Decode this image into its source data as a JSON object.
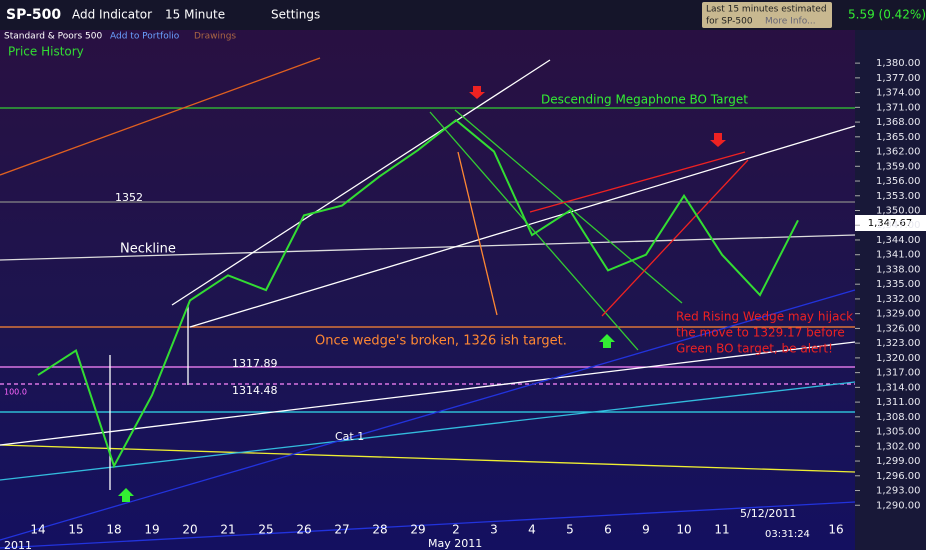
{
  "toolbar": {
    "symbol": "SP-500",
    "add_indicator": "Add Indicator",
    "interval": "15 Minute",
    "settings": "Settings",
    "delay_note_1": "Last 15 minutes estimated",
    "delay_note_2": "for SP-500",
    "more_info": "More Info...",
    "change": "5.59 (0.42%)"
  },
  "subbar": {
    "name": "Standard & Poors 500",
    "add_portfolio": "Add to Portfolio",
    "drawings": "Drawings",
    "price_history": "Price History"
  },
  "chart_data": {
    "type": "line",
    "color": "#33dd33",
    "categories": [
      "14",
      "15",
      "18",
      "19",
      "20",
      "21",
      "25",
      "26",
      "27",
      "28",
      "29",
      "2",
      "3",
      "4",
      "5",
      "6",
      "9",
      "10",
      "11",
      null,
      null,
      "16"
    ],
    "values": [
      1316.5,
      1321.5,
      1298,
      1312.4,
      1331.7,
      1336.8,
      1333.8,
      1349,
      1351,
      1357,
      1362.3,
      1368.4,
      1362,
      1345,
      1350,
      1337.8,
      1341,
      1353,
      1341,
      1332.8,
      1348,
      null
    ],
    "ylim": [
      1287,
      1384.3
    ],
    "yticks": [
      {
        "value": 1290,
        "label": "1,290.00"
      },
      {
        "value": 1293,
        "label": "1,293.00"
      },
      {
        "value": 1296,
        "label": "1,296.00"
      },
      {
        "value": 1299,
        "label": "1,299.00"
      },
      {
        "value": 1302,
        "label": "1,302.00"
      },
      {
        "value": 1305,
        "label": "1,305.00"
      },
      {
        "value": 1308,
        "label": "1,308.00"
      },
      {
        "value": 1311,
        "label": "1,311.00"
      },
      {
        "value": 1314,
        "label": "1,314.00"
      },
      {
        "value": 1317,
        "label": "1,317.00"
      },
      {
        "value": 1320,
        "label": "1,320.00"
      },
      {
        "value": 1323,
        "label": "1,323.00"
      },
      {
        "value": 1326,
        "label": "1,326.00"
      },
      {
        "value": 1329,
        "label": "1,329.00"
      },
      {
        "value": 1332,
        "label": "1,332.00"
      },
      {
        "value": 1335,
        "label": "1,335.00"
      },
      {
        "value": 1338,
        "label": "1,338.00"
      },
      {
        "value": 1341,
        "label": "1,341.00"
      },
      {
        "value": 1344,
        "label": "1,344.00"
      },
      {
        "value": 1347,
        "label": "1,347.00"
      },
      {
        "value": 1350,
        "label": "1,350.00"
      },
      {
        "value": 1353,
        "label": "1,353.00"
      },
      {
        "value": 1356,
        "label": "1,356.00"
      },
      {
        "value": 1359,
        "label": "1,359.00"
      },
      {
        "value": 1362,
        "label": "1,362.00"
      },
      {
        "value": 1365,
        "label": "1,365.00"
      },
      {
        "value": 1368,
        "label": "1,368.00"
      },
      {
        "value": 1371,
        "label": "1,371.00"
      },
      {
        "value": 1374,
        "label": "1,374.00"
      },
      {
        "value": 1377,
        "label": "1,377.00"
      },
      {
        "value": 1380,
        "label": "1,380.00"
      }
    ],
    "annotations": [
      "Descending Megaphone BO Target",
      "1352",
      "Neckline",
      "Once wedge's broken, 1326 ish target.",
      "1317.89",
      "1314.48",
      "Cat 1",
      "Red Rising Wedge may hijack",
      "the move to 1329.17 before",
      "Green BO target, be alert!",
      "100.0"
    ],
    "last_price": "1,347.67",
    "date_box": "5/12/2011",
    "time": "03:31:24",
    "year_label": "2011",
    "month_label": "May 2011"
  }
}
